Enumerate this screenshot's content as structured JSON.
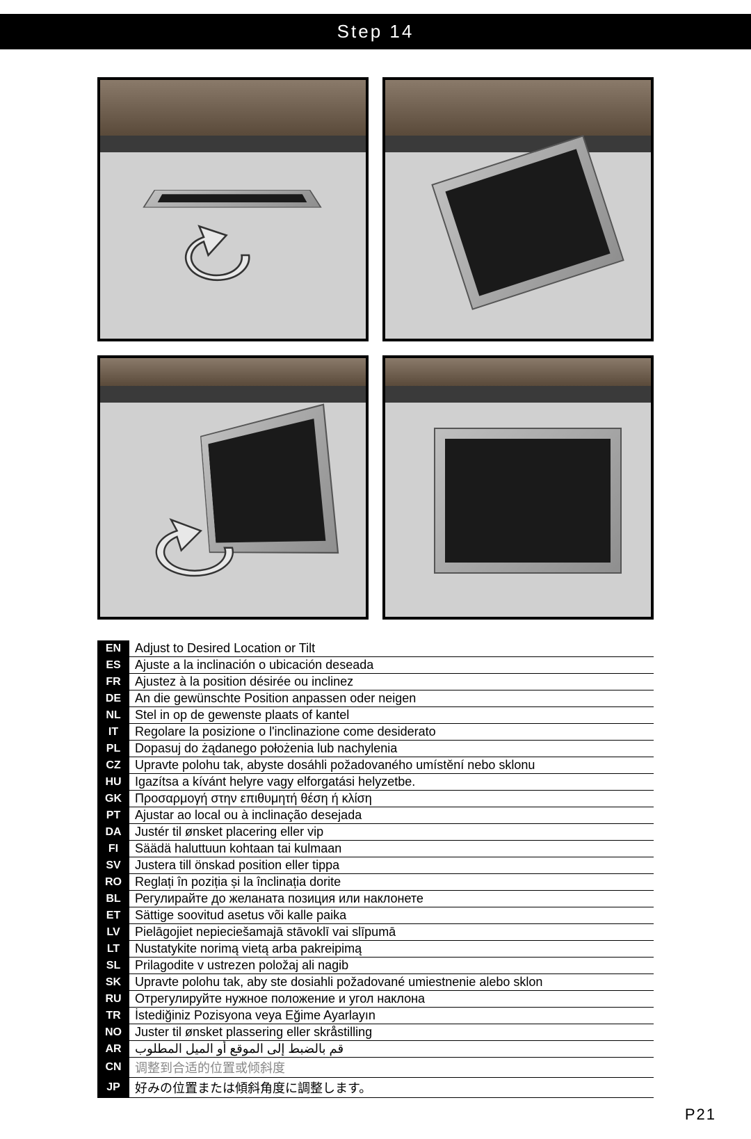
{
  "header": {
    "title": "Step 14"
  },
  "page_number": "P21",
  "images": {
    "rows": 2,
    "cols": 2,
    "border_color": "#000000",
    "placeholder_bg": "#d0d0d0"
  },
  "lang_table": {
    "code_bg": "#000000",
    "code_fg": "#ffffff",
    "row_border": "#000000",
    "rows": [
      {
        "code": "EN",
        "text": "Adjust to Desired Location or Tilt"
      },
      {
        "code": "ES",
        "text": "Ajuste a la inclinación o ubicación deseada"
      },
      {
        "code": "FR",
        "text": "Ajustez à la position désirée ou inclinez"
      },
      {
        "code": "DE",
        "text": "An die gewünschte Position anpassen oder neigen"
      },
      {
        "code": "NL",
        "text": "Stel in op de gewenste plaats of kantel"
      },
      {
        "code": "IT",
        "text": "Regolare la posizione o l'inclinazione come desiderato"
      },
      {
        "code": "PL",
        "text": "Dopasuj do żądanego położenia lub nachylenia"
      },
      {
        "code": "CZ",
        "text": "Upravte polohu tak, abyste dosáhli požadovaného umístění nebo sklonu"
      },
      {
        "code": "HU",
        "text": "Igazítsa a kívánt helyre vagy elforgatási helyzetbe."
      },
      {
        "code": "GK",
        "text": "Προσαρμογή στην επιθυμητή θέση ή κλίση"
      },
      {
        "code": "PT",
        "text": "Ajustar ao local ou à inclinação  desejada"
      },
      {
        "code": "DA",
        "text": "Justér til ønsket placering eller vip"
      },
      {
        "code": "FI",
        "text": "Säädä haluttuun kohtaan tai kulmaan"
      },
      {
        "code": "SV",
        "text": "Justera till önskad position eller tippa"
      },
      {
        "code": "RO",
        "text": "Reglați în poziția și la înclinația dorite"
      },
      {
        "code": "BL",
        "text": "Регулирайте до желаната позиция или наклонете"
      },
      {
        "code": "ET",
        "text": "Sättige soovitud asetus või kalle paika"
      },
      {
        "code": "LV",
        "text": "Pielāgojiet nepieciešamajā stāvoklī vai slīpumā"
      },
      {
        "code": "LT",
        "text": "Nustatykite norimą vietą arba pakreipimą"
      },
      {
        "code": "SL",
        "text": "Prilagodite v ustrezen položaj ali nagib"
      },
      {
        "code": "SK",
        "text": "Upravte polohu tak, aby ste dosiahli požadované umiestnenie alebo sklon"
      },
      {
        "code": "RU",
        "text": "Отрегулируйте нужное положение и угол наклона"
      },
      {
        "code": "TR",
        "text": "İstediğiniz Pozisyona veya Eğime Ayarlayın"
      },
      {
        "code": "NO",
        "text": "Juster til ønsket plassering eller skråstilling"
      },
      {
        "code": "AR",
        "text": "قم بالضبط إلى الموقع أو الميل المطلوب"
      },
      {
        "code": "CN",
        "text": "调整到合适的位置或倾斜度",
        "muted": true
      },
      {
        "code": "JP",
        "text": "好みの位置または傾斜角度に調整します。"
      }
    ]
  }
}
